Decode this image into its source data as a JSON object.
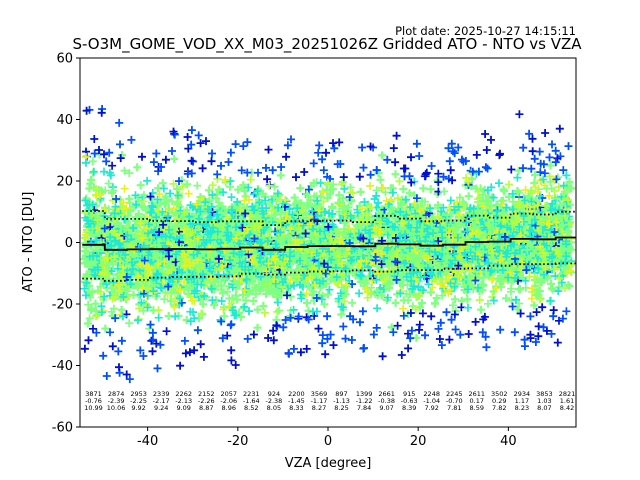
{
  "chart_data": {
    "type": "scatter",
    "title": "S-O3M_GOME_VOD_XX_M03_20251026Z Gridded ATO - NTO vs VZA",
    "plot_date_label": "Plot date: 2025-10-27 14:15:11",
    "xlabel": "VZA [degree]",
    "ylabel": "ATO - NTO [DU]",
    "xlim": [
      -55,
      55
    ],
    "ylim": [
      -60,
      60
    ],
    "xticks": [
      -40,
      -20,
      0,
      20,
      40
    ],
    "yticks": [
      -60,
      -40,
      -20,
      0,
      20,
      40,
      60
    ],
    "grid": false,
    "colors": {
      "main_fill": "#80ff80",
      "cyan": "#1ee8d6",
      "yellow": "#e8f020",
      "green_yellow": "#b8ff3a",
      "blue": "#0050ff",
      "dark_blue": "#0010d0",
      "mean_line": "#000000"
    },
    "bins": [
      {
        "vza": -52,
        "count": "3871",
        "mean": "-0.76",
        "std": "10.99"
      },
      {
        "vza": -47,
        "count": "2874",
        "mean": "-2.39",
        "std": "10.06"
      },
      {
        "vza": -42,
        "count": "2953",
        "mean": "-2.25",
        "std": "9.92"
      },
      {
        "vza": -37,
        "count": "2339",
        "mean": "-2.17",
        "std": "9.24"
      },
      {
        "vza": -32,
        "count": "2262",
        "mean": "-2.13",
        "std": "9.09"
      },
      {
        "vza": -27,
        "count": "2152",
        "mean": "-2.26",
        "std": "8.87"
      },
      {
        "vza": -22,
        "count": "2057",
        "mean": "-2.06",
        "std": "8.96"
      },
      {
        "vza": -17,
        "count": "2231",
        "mean": "-1.64",
        "std": "8.52"
      },
      {
        "vza": -12,
        "count": "924",
        "mean": "-2.38",
        "std": "8.05"
      },
      {
        "vza": -7,
        "count": "2200",
        "mean": "-1.45",
        "std": "8.33"
      },
      {
        "vza": -2,
        "count": "3569",
        "mean": "-1.17",
        "std": "8.27"
      },
      {
        "vza": 3,
        "count": "897",
        "mean": "-1.13",
        "std": "8.25"
      },
      {
        "vza": 8,
        "count": "1399",
        "mean": "-1.22",
        "std": "7.84"
      },
      {
        "vza": 13,
        "count": "2661",
        "mean": "-0.38",
        "std": "9.07"
      },
      {
        "vza": 18,
        "count": "915",
        "mean": "-0.63",
        "std": "8.39"
      },
      {
        "vza": 23,
        "count": "2248",
        "mean": "-1.04",
        "std": "7.92"
      },
      {
        "vza": 28,
        "count": "2245",
        "mean": "-0.70",
        "std": "7.81"
      },
      {
        "vza": 33,
        "count": "2611",
        "mean": "0.17",
        "std": "8.59"
      },
      {
        "vza": 38,
        "count": "3502",
        "mean": "0.29",
        "std": "7.82"
      },
      {
        "vza": 43,
        "count": "2934",
        "mean": "1.17",
        "std": "8.23"
      },
      {
        "vza": 48,
        "count": "3853",
        "mean": "1.03",
        "std": "8.07"
      },
      {
        "vza": 53,
        "count": "2821",
        "mean": "1.61",
        "std": "8.42"
      }
    ]
  }
}
